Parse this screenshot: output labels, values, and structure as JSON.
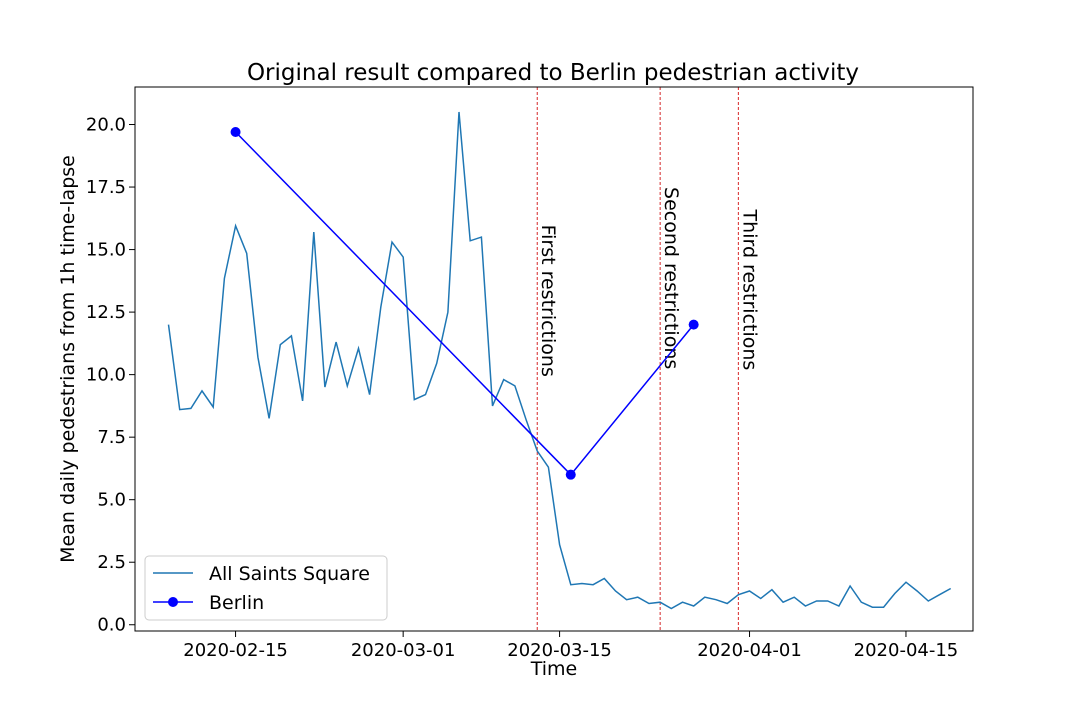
{
  "chart_data": {
    "type": "line",
    "title": "Original result compared to Berlin pedestrian activity",
    "xlabel": "Time",
    "ylabel": "Mean daily pedestrians from 1h time-lapse",
    "xlim": [
      "2020-02-06",
      "2020-04-21"
    ],
    "ylim": [
      -0.25,
      21.5
    ],
    "x_ticks": [
      "2020-02-15",
      "2020-03-01",
      "2020-03-15",
      "2020-04-01",
      "2020-04-15"
    ],
    "y_ticks": [
      "0.0",
      "2.5",
      "5.0",
      "7.5",
      "10.0",
      "12.5",
      "15.0",
      "17.5",
      "20.0"
    ],
    "y_tick_values": [
      0,
      2.5,
      5,
      7.5,
      10,
      12.5,
      15,
      17.5,
      20
    ],
    "grid": false,
    "legend_position": "lower-left",
    "series": [
      {
        "name": "All Saints Square",
        "color": "#1f77b4",
        "marker": "none",
        "x": [
          "2020-02-09",
          "2020-02-10",
          "2020-02-11",
          "2020-02-12",
          "2020-02-13",
          "2020-02-14",
          "2020-02-15",
          "2020-02-16",
          "2020-02-17",
          "2020-02-18",
          "2020-02-19",
          "2020-02-20",
          "2020-02-21",
          "2020-02-22",
          "2020-02-23",
          "2020-02-24",
          "2020-02-25",
          "2020-02-26",
          "2020-02-27",
          "2020-02-28",
          "2020-02-29",
          "2020-03-01",
          "2020-03-02",
          "2020-03-03",
          "2020-03-04",
          "2020-03-05",
          "2020-03-06",
          "2020-03-07",
          "2020-03-08",
          "2020-03-09",
          "2020-03-10",
          "2020-03-11",
          "2020-03-12",
          "2020-03-13",
          "2020-03-14",
          "2020-03-15",
          "2020-03-16",
          "2020-03-17",
          "2020-03-18",
          "2020-03-19",
          "2020-03-20",
          "2020-03-21",
          "2020-03-22",
          "2020-03-23",
          "2020-03-24",
          "2020-03-25",
          "2020-03-26",
          "2020-03-27",
          "2020-03-28",
          "2020-03-29",
          "2020-03-30",
          "2020-03-31",
          "2020-04-01",
          "2020-04-02",
          "2020-04-03",
          "2020-04-04",
          "2020-04-05",
          "2020-04-06",
          "2020-04-07",
          "2020-04-08",
          "2020-04-09",
          "2020-04-10",
          "2020-04-11",
          "2020-04-12",
          "2020-04-13",
          "2020-04-14",
          "2020-04-15",
          "2020-04-16",
          "2020-04-17",
          "2020-04-18",
          "2020-04-19"
        ],
        "values": [
          12.0,
          8.6,
          8.65,
          9.35,
          8.7,
          13.85,
          15.95,
          14.85,
          10.7,
          8.25,
          11.2,
          11.55,
          8.95,
          15.7,
          9.5,
          11.3,
          9.55,
          11.05,
          9.2,
          12.7,
          15.3,
          14.7,
          9.0,
          9.2,
          10.45,
          12.5,
          20.5,
          15.35,
          15.5,
          8.75,
          9.8,
          9.55,
          8.2,
          6.95,
          6.3,
          3.2,
          1.6,
          1.65,
          1.6,
          1.85,
          1.35,
          1.0,
          1.1,
          0.85,
          0.9,
          0.65,
          0.9,
          0.75,
          1.1,
          1.0,
          0.85,
          1.2,
          1.35,
          1.05,
          1.4,
          0.9,
          1.1,
          0.75,
          0.95,
          0.95,
          0.75,
          1.55,
          0.9,
          0.7,
          0.7,
          1.25,
          1.7,
          1.35,
          0.95,
          1.2,
          1.45
        ]
      },
      {
        "name": "Berlin",
        "color": "#0000ff",
        "marker": "circle",
        "x": [
          "2020-02-15",
          "2020-03-16",
          "2020-03-27"
        ],
        "values": [
          19.7,
          6.0,
          12.0
        ]
      }
    ],
    "vertical_lines": [
      {
        "x": "2020-03-13",
        "label": "First restrictions",
        "color": "#d62728",
        "label_top_value": 16.0
      },
      {
        "x": "2020-03-24",
        "label": "Second restrictions",
        "color": "#d62728",
        "label_top_value": 17.5
      },
      {
        "x": "2020-03-31",
        "label": "Third restrictions",
        "color": "#d62728",
        "label_top_value": 16.6
      }
    ]
  }
}
